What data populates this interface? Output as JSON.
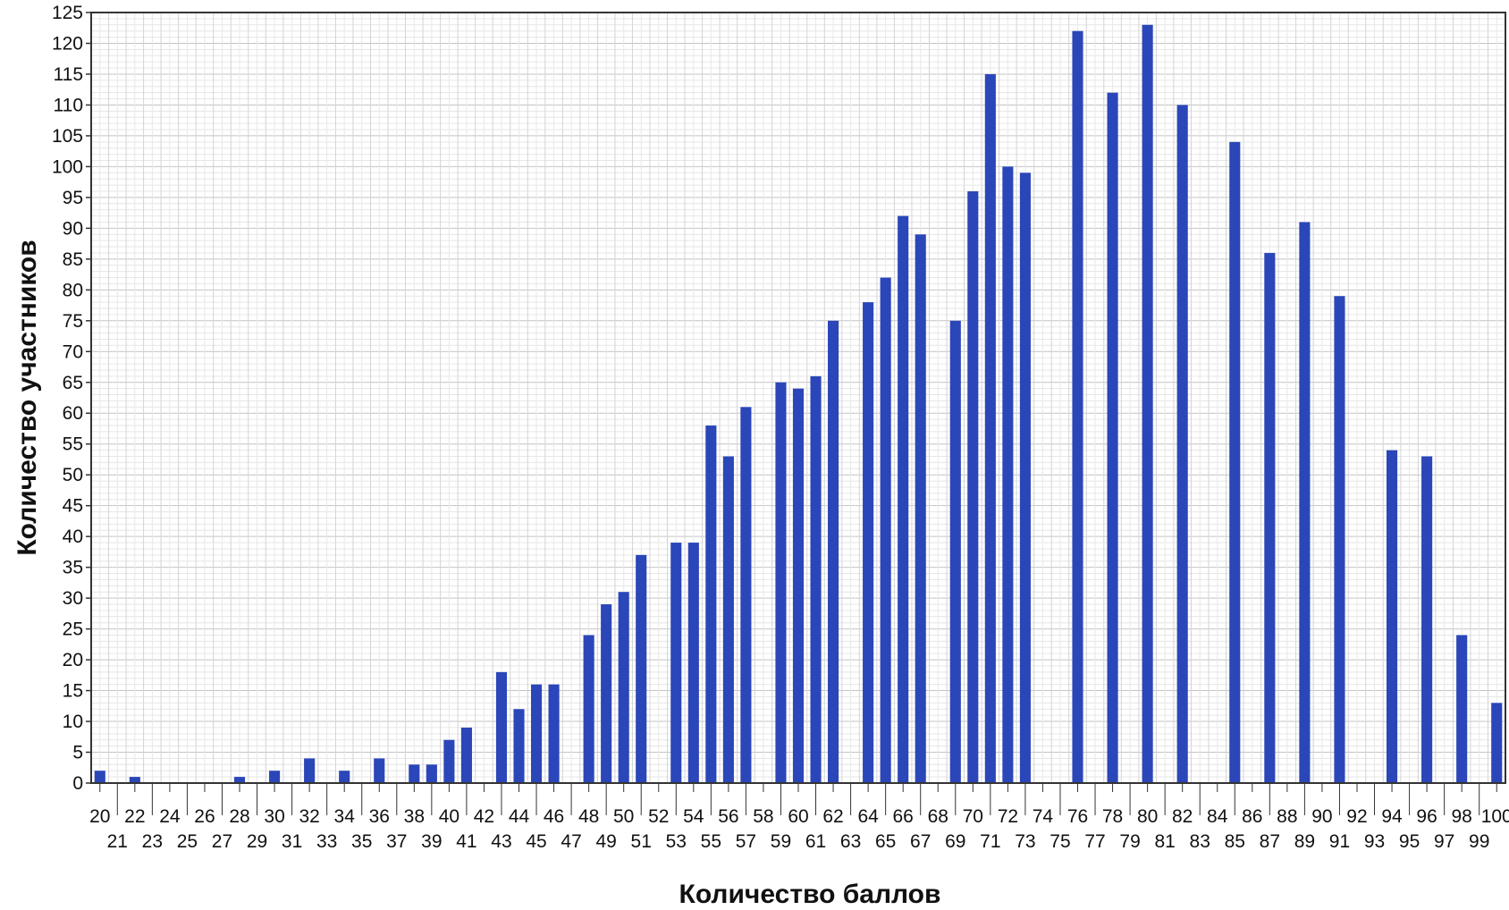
{
  "chart_data": {
    "type": "bar",
    "xlabel": "Количество баллов",
    "ylabel": "Количество участников",
    "ylim": [
      0,
      125
    ],
    "y_tick_step": 5,
    "grid": true,
    "bar_color": "#2a46b8",
    "x": [
      20,
      21,
      22,
      23,
      24,
      25,
      26,
      27,
      28,
      29,
      30,
      31,
      32,
      33,
      34,
      35,
      36,
      37,
      38,
      39,
      40,
      41,
      42,
      43,
      44,
      45,
      46,
      47,
      48,
      49,
      50,
      51,
      52,
      53,
      54,
      55,
      56,
      57,
      58,
      59,
      60,
      61,
      62,
      63,
      64,
      65,
      66,
      67,
      68,
      69,
      70,
      71,
      72,
      73,
      74,
      75,
      76,
      77,
      78,
      79,
      80,
      81,
      82,
      83,
      84,
      85,
      86,
      87,
      88,
      89,
      90,
      91,
      92,
      93,
      94,
      95,
      96,
      97,
      98,
      99,
      100
    ],
    "values": [
      2,
      0,
      1,
      0,
      0,
      0,
      0,
      0,
      1,
      0,
      2,
      0,
      4,
      0,
      2,
      0,
      4,
      0,
      3,
      3,
      7,
      9,
      0,
      18,
      12,
      16,
      16,
      0,
      24,
      29,
      31,
      37,
      0,
      39,
      39,
      58,
      53,
      61,
      0,
      65,
      64,
      66,
      75,
      0,
      78,
      82,
      92,
      89,
      0,
      75,
      96,
      115,
      100,
      99,
      0,
      0,
      122,
      0,
      112,
      0,
      123,
      0,
      110,
      0,
      0,
      104,
      0,
      86,
      0,
      91,
      0,
      79,
      0,
      0,
      54,
      0,
      53,
      0,
      24,
      0,
      13
    ]
  }
}
